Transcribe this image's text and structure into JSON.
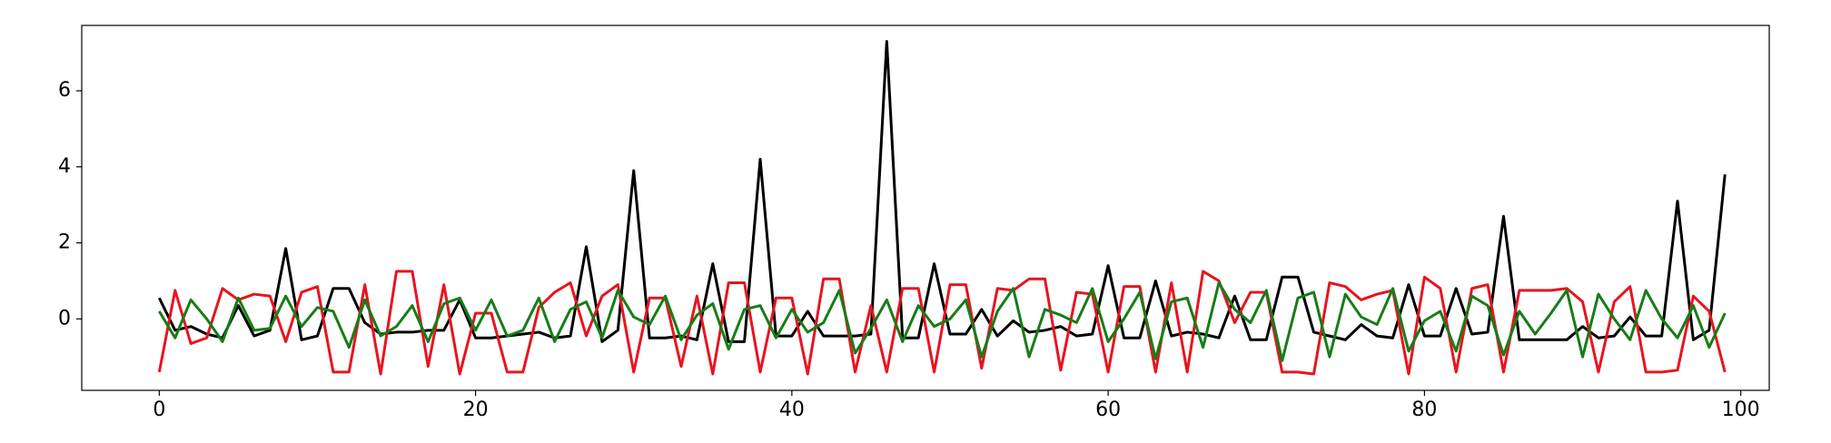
{
  "chart_data": {
    "type": "line",
    "x": [
      0,
      1,
      2,
      3,
      4,
      5,
      6,
      7,
      8,
      9,
      10,
      11,
      12,
      13,
      14,
      15,
      16,
      17,
      18,
      19,
      20,
      21,
      22,
      23,
      24,
      25,
      26,
      27,
      28,
      29,
      30,
      31,
      32,
      33,
      34,
      35,
      36,
      37,
      38,
      39,
      40,
      41,
      42,
      43,
      44,
      45,
      46,
      47,
      48,
      49,
      50,
      51,
      52,
      53,
      54,
      55,
      56,
      57,
      58,
      59,
      60,
      61,
      62,
      63,
      64,
      65,
      66,
      67,
      68,
      69,
      70,
      71,
      72,
      73,
      74,
      75,
      76,
      77,
      78,
      79,
      80,
      81,
      82,
      83,
      84,
      85,
      86,
      87,
      88,
      89,
      90,
      91,
      92,
      93,
      94,
      95,
      96,
      97,
      98,
      99
    ],
    "series": [
      {
        "color": "#000000",
        "values": [
          0.55,
          -0.3,
          -0.2,
          -0.4,
          -0.5,
          0.35,
          -0.45,
          -0.3,
          1.85,
          -0.55,
          -0.45,
          0.8,
          0.8,
          -0.1,
          -0.4,
          -0.35,
          -0.35,
          -0.3,
          -0.3,
          0.5,
          -0.5,
          -0.5,
          -0.45,
          -0.4,
          -0.35,
          -0.5,
          -0.45,
          1.9,
          -0.6,
          -0.3,
          3.9,
          -0.5,
          -0.5,
          -0.45,
          -0.55,
          1.45,
          -0.6,
          -0.6,
          4.2,
          -0.45,
          -0.45,
          0.2,
          -0.45,
          -0.45,
          -0.45,
          -0.4,
          7.3,
          -0.5,
          -0.5,
          1.45,
          -0.4,
          -0.4,
          0.25,
          -0.45,
          -0.05,
          -0.35,
          -0.3,
          -0.2,
          -0.45,
          -0.4,
          1.4,
          -0.5,
          -0.5,
          1.0,
          -0.45,
          -0.35,
          -0.4,
          -0.5,
          0.6,
          -0.55,
          -0.55,
          1.1,
          1.1,
          -0.35,
          -0.45,
          -0.55,
          -0.15,
          -0.45,
          -0.5,
          0.9,
          -0.45,
          -0.45,
          0.8,
          -0.4,
          -0.35,
          2.7,
          -0.55,
          -0.55,
          -0.55,
          -0.55,
          -0.2,
          -0.5,
          -0.45,
          0.05,
          -0.45,
          -0.45,
          3.1,
          -0.55,
          -0.3,
          3.8
        ]
      },
      {
        "color": "#e8141f",
        "values": [
          -1.4,
          0.75,
          -0.65,
          -0.5,
          0.8,
          0.5,
          0.65,
          0.6,
          -0.6,
          0.7,
          0.85,
          -1.4,
          -1.4,
          0.9,
          -1.45,
          1.25,
          1.25,
          -1.25,
          0.9,
          -1.45,
          0.15,
          0.15,
          -1.4,
          -1.4,
          0.3,
          0.7,
          0.95,
          -0.45,
          0.6,
          0.9,
          -1.4,
          0.55,
          0.55,
          -1.25,
          0.6,
          -1.45,
          0.95,
          0.95,
          -1.4,
          0.55,
          0.55,
          -1.45,
          1.05,
          1.05,
          -1.4,
          0.35,
          -1.4,
          0.8,
          0.8,
          -1.4,
          0.9,
          0.9,
          -1.3,
          0.8,
          0.75,
          1.05,
          1.05,
          -1.35,
          0.7,
          0.65,
          -1.4,
          0.85,
          0.85,
          -1.4,
          0.95,
          -1.4,
          1.25,
          1.0,
          -0.1,
          0.7,
          0.7,
          -1.4,
          -1.4,
          -1.45,
          0.95,
          0.85,
          0.5,
          0.65,
          0.75,
          -1.45,
          1.1,
          0.8,
          -1.4,
          0.8,
          0.9,
          -1.4,
          0.75,
          0.75,
          0.75,
          0.8,
          0.45,
          -1.4,
          0.45,
          0.85,
          -1.4,
          -1.4,
          -1.35,
          0.6,
          0.2,
          -1.4
        ]
      },
      {
        "color": "#177d17",
        "values": [
          0.2,
          -0.5,
          0.5,
          0.0,
          -0.6,
          0.55,
          -0.3,
          -0.25,
          0.6,
          -0.2,
          0.3,
          0.2,
          -0.75,
          0.5,
          -0.45,
          -0.2,
          0.35,
          -0.6,
          0.4,
          0.55,
          -0.3,
          0.5,
          -0.45,
          -0.3,
          0.55,
          -0.6,
          0.25,
          0.45,
          -0.5,
          0.75,
          0.05,
          -0.15,
          0.6,
          -0.55,
          0.1,
          0.4,
          -0.8,
          0.25,
          0.35,
          -0.5,
          0.25,
          -0.35,
          -0.1,
          0.75,
          -0.9,
          -0.25,
          0.5,
          -0.6,
          0.35,
          -0.2,
          0.0,
          0.5,
          -1.0,
          0.2,
          0.8,
          -1.0,
          0.25,
          0.1,
          -0.1,
          0.8,
          -0.6,
          0.0,
          0.7,
          -1.05,
          0.45,
          0.55,
          -0.75,
          0.95,
          0.25,
          -0.1,
          0.75,
          -1.1,
          0.55,
          0.7,
          -1.0,
          0.65,
          0.05,
          -0.15,
          0.8,
          -0.85,
          -0.05,
          0.2,
          -0.85,
          0.6,
          0.35,
          -0.95,
          0.2,
          -0.4,
          0.15,
          0.75,
          -1.0,
          0.65,
          0.0,
          -0.55,
          0.75,
          0.0,
          -0.5,
          0.35,
          -0.75,
          0.15
        ]
      }
    ],
    "xlim": [
      -4.9,
      101.8
    ],
    "ylim": [
      -1.88,
      7.72
    ],
    "xticks": [
      0,
      20,
      40,
      60,
      80,
      100
    ],
    "yticks": [
      0,
      2,
      4,
      6
    ]
  }
}
